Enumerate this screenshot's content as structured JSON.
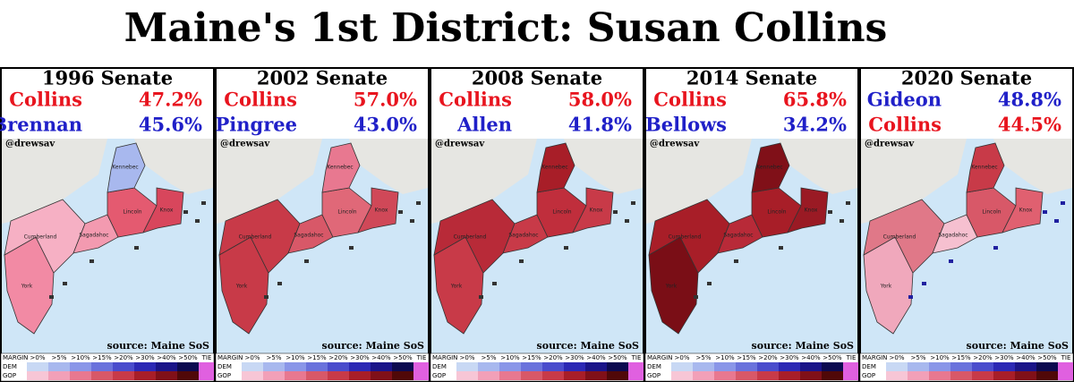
{
  "title": "Maine's 1st District: Susan Collins",
  "panels": [
    {
      "heading": "1996 Senate",
      "rows": [
        {
          "name": "Collins",
          "share": "47.2%"
        },
        {
          "name": "Brennan",
          "share": "45.6%"
        }
      ]
    },
    {
      "heading": "2002 Senate",
      "rows": [
        {
          "name": "Collins",
          "share": "57.0%"
        },
        {
          "name": "Pingree",
          "share": "43.0%"
        }
      ]
    },
    {
      "heading": "2008 Senate",
      "rows": [
        {
          "name": "Collins",
          "share": "58.0%"
        },
        {
          "name": "Allen",
          "share": "41.8%"
        }
      ]
    },
    {
      "heading": "2014 Senate",
      "rows": [
        {
          "name": "Collins",
          "share": "65.8%"
        },
        {
          "name": "Bellows",
          "share": "34.2%"
        }
      ]
    },
    {
      "heading": "2020 Senate",
      "rows": [
        {
          "name": "Gideon",
          "share": "48.8%"
        },
        {
          "name": "Collins",
          "share": "44.5%"
        }
      ]
    }
  ],
  "credit": "@drewsav",
  "source": "source: Maine SoS",
  "counties": [
    "York",
    "Cumberland",
    "Sagadahoc",
    "Lincoln",
    "Knox",
    "Kennebec"
  ],
  "legend": {
    "title": "MARGIN",
    "bins": [
      ">0%",
      ">5%",
      ">10%",
      ">15%",
      ">20%",
      ">30%",
      ">40%",
      ">50%"
    ],
    "tie": "TIE",
    "rows": [
      "DEM",
      "GOP"
    ]
  }
}
